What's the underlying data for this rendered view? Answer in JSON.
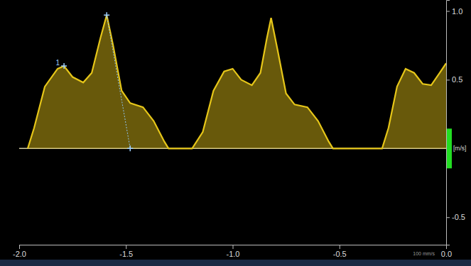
{
  "chart_data": {
    "type": "area",
    "subtitle": "100 mm/s",
    "y_label": "[m/s]",
    "color": "#e6c619",
    "x": [
      -1.96,
      -1.93,
      -1.88,
      -1.82,
      -1.79,
      -1.75,
      -1.7,
      -1.66,
      -1.62,
      -1.59,
      -1.56,
      -1.52,
      -1.48,
      -1.42,
      -1.37,
      -1.32,
      -1.3,
      -1.19,
      -1.14,
      -1.09,
      -1.04,
      -1.0,
      -0.96,
      -0.91,
      -0.87,
      -0.84,
      -0.82,
      -0.79,
      -0.75,
      -0.71,
      -0.65,
      -0.6,
      -0.55,
      -0.53,
      -0.3,
      -0.27,
      -0.23,
      -0.19,
      -0.15,
      -0.11,
      -0.07,
      -0.03,
      0.0
    ],
    "values": [
      0,
      0.15,
      0.45,
      0.58,
      0.6,
      0.52,
      0.48,
      0.55,
      0.8,
      0.97,
      0.75,
      0.42,
      0.33,
      0.3,
      0.2,
      0.05,
      0,
      0,
      0.12,
      0.42,
      0.56,
      0.58,
      0.5,
      0.46,
      0.55,
      0.8,
      0.95,
      0.72,
      0.4,
      0.32,
      0.3,
      0.2,
      0.05,
      0,
      0,
      0.15,
      0.45,
      0.58,
      0.55,
      0.47,
      0.46,
      0.55,
      0.62
    ],
    "xlim": [
      -2.0,
      0.0
    ],
    "xticks": [
      {
        "value": -2.0,
        "label": "-2.0"
      },
      -1.5,
      {
        "value": -1.0,
        "label": "-1.0"
      },
      -0.5,
      {
        "value": 0.0,
        "label": "0.0"
      }
    ],
    "ylim": [
      -0.7,
      1.08
    ],
    "yticks": [
      {
        "value": 1.0,
        "label": "1.0"
      },
      0.5,
      -0.5
    ],
    "grid": false,
    "calipers": {
      "x": [
        -1.79,
        -1.59,
        -1.48
      ],
      "y": [
        0.6,
        0.97,
        0.0
      ]
    },
    "annotations": [
      {
        "text": "1",
        "x": -1.79,
        "y": 0.6
      }
    ]
  }
}
